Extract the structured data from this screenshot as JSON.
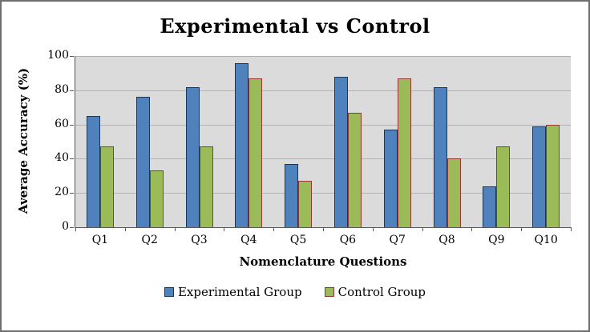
{
  "chart_data": {
    "type": "bar",
    "title": "Experimental vs Control",
    "xlabel": "Nomenclature Questions",
    "ylabel": "Average Accuracy (%)",
    "categories": [
      "Q1",
      "Q2",
      "Q3",
      "Q4",
      "Q5",
      "Q6",
      "Q7",
      "Q8",
      "Q9",
      "Q10"
    ],
    "series": [
      {
        "name": "Experimental Group",
        "fill": "#4F81BD",
        "border": "#17375E",
        "values": [
          65,
          76,
          82,
          96,
          37,
          88,
          57,
          82,
          24,
          59
        ]
      },
      {
        "name": "Control Group",
        "fill": "#9BBB59",
        "border": "#943634",
        "values": [
          47,
          33,
          47,
          87,
          27,
          67,
          87,
          40,
          47,
          60
        ]
      }
    ],
    "ylim": [
      0,
      100
    ],
    "yticks": [
      0,
      20,
      40,
      60,
      80,
      100
    ],
    "grid": true,
    "legend_position": "bottom",
    "plot_bg": "#DBDBDB"
  }
}
